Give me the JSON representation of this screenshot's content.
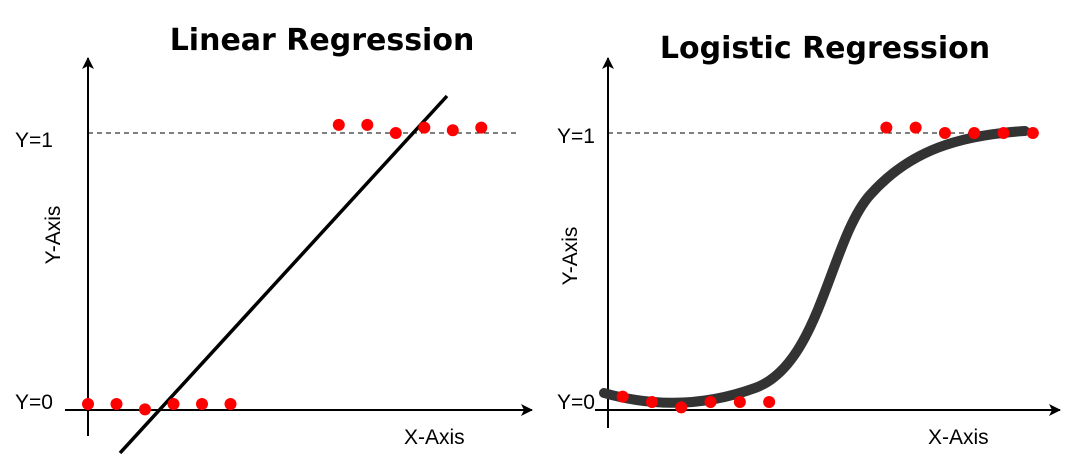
{
  "colors": {
    "points": "#ff0000",
    "line": "#000000",
    "sigmoid": "#333333",
    "axis": "#000000"
  },
  "panels": [
    {
      "title": "Linear Regression",
      "y1_label": "Y=1",
      "y0_label": "Y=0",
      "ylabel": "Y-Axis",
      "xlabel": "X-Axis",
      "curve": "linear",
      "points": [
        [
          0.0,
          0.0
        ],
        [
          1.0,
          0.0
        ],
        [
          2.0,
          -0.02
        ],
        [
          3.0,
          0.0
        ],
        [
          4.0,
          0.0
        ],
        [
          5.0,
          0.0
        ],
        [
          8.8,
          1.03
        ],
        [
          9.8,
          1.03
        ],
        [
          10.8,
          1.0
        ],
        [
          11.8,
          1.02
        ],
        [
          12.8,
          1.01
        ],
        [
          13.8,
          1.02
        ]
      ]
    },
    {
      "title": "Logistic Regression",
      "y1_label": "Y=1",
      "y0_label": "Y=0",
      "ylabel": "Y-Axis",
      "xlabel": "X-Axis",
      "curve": "sigmoid",
      "points": [
        [
          0.5,
          0.02
        ],
        [
          1.5,
          0.0
        ],
        [
          2.5,
          -0.02
        ],
        [
          3.5,
          0.0
        ],
        [
          4.5,
          0.0
        ],
        [
          5.5,
          0.0
        ],
        [
          9.5,
          1.02
        ],
        [
          10.5,
          1.02
        ],
        [
          11.5,
          1.0
        ],
        [
          12.5,
          1.0
        ],
        [
          13.5,
          1.0
        ],
        [
          14.5,
          1.0
        ]
      ]
    }
  ]
}
